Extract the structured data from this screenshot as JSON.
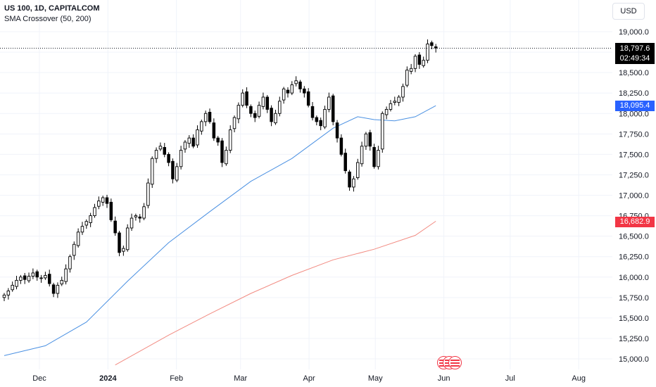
{
  "header": {
    "title": "US 100, 1D, CAPITALCOM",
    "indicator": "SMA Crossover (50, 200)"
  },
  "currency_button": "USD",
  "price_tags": {
    "last_price": "18,797.6",
    "countdown": "02:49:34",
    "sma50": "18,095.4",
    "sma200": "16,682.9"
  },
  "colors": {
    "candles": "#000000",
    "sma50": "#4a90e2",
    "sma200": "#f28b82",
    "sma50_tag": "#2962ff",
    "sma200_tag": "#f23645",
    "grid": "#f0f3fa"
  },
  "icons": [
    "us-flag-event-icon"
  ],
  "chart_data": {
    "type": "candlestick",
    "symbol": "US 100",
    "interval": "1D",
    "source": "CAPITALCOM",
    "y_ticks": [
      15000,
      15250,
      15500,
      15750,
      16000,
      16250,
      16500,
      16750,
      17000,
      17250,
      17500,
      17750,
      18000,
      18250,
      18500,
      18750,
      19000
    ],
    "y_tick_labels": [
      "15,000.0",
      "15,250.0",
      "15,500.0",
      "15,750.0",
      "16,000.0",
      "16,250.0",
      "16,500.0",
      "16,750.0",
      "17,000.0",
      "17,250.0",
      "17,500.0",
      "17,750.0",
      "18,000.0",
      "18,250.0",
      "18,500.0",
      "18,750.0",
      "19,000.0"
    ],
    "ylim": [
      14900,
      19200
    ],
    "x_ticks": [
      {
        "label": "Dec",
        "date": "2023-12-01"
      },
      {
        "label": "2024",
        "date": "2024-01-01",
        "bold": true
      },
      {
        "label": "Feb",
        "date": "2024-02-01"
      },
      {
        "label": "Mar",
        "date": "2024-03-01"
      },
      {
        "label": "Apr",
        "date": "2024-04-01"
      },
      {
        "label": "May",
        "date": "2024-05-01"
      },
      {
        "label": "Jun",
        "date": "2024-06-01"
      },
      {
        "label": "Jul",
        "date": "2024-07-01"
      },
      {
        "label": "Aug",
        "date": "2024-08-01"
      }
    ],
    "last_price": 18797.6,
    "closes": [
      15780,
      15830,
      15900,
      15960,
      16000,
      15970,
      16010,
      16050,
      16000,
      15990,
      16020,
      15920,
      15800,
      15900,
      15960,
      16100,
      16250,
      16400,
      16550,
      16620,
      16680,
      16750,
      16850,
      16930,
      16970,
      16900,
      16700,
      16540,
      16300,
      16350,
      16600,
      16720,
      16750,
      16720,
      16860,
      17150,
      17450,
      17550,
      17600,
      17500,
      17400,
      17200,
      17350,
      17550,
      17650,
      17700,
      17600,
      17800,
      17900,
      18000,
      17900,
      17700,
      17650,
      17400,
      17550,
      17800,
      17950,
      18100,
      18250,
      18100,
      18000,
      17950,
      18100,
      18200,
      18050,
      17900,
      18000,
      18150,
      18300,
      18250,
      18350,
      18400,
      18300,
      18250,
      18100,
      17950,
      17900,
      17850,
      18050,
      18200,
      17900,
      17700,
      17500,
      17300,
      17100,
      17200,
      17400,
      17600,
      17750,
      17600,
      17350,
      17550,
      18000,
      18050,
      18120,
      18150,
      18200,
      18330,
      18530,
      18550,
      18700,
      18600,
      18650,
      18850,
      18830,
      18800
    ],
    "series": [
      {
        "name": "SMA Crossover (50)",
        "color": "#4a90e2",
        "x": [
          0,
          10,
          20,
          30,
          40,
          50,
          60,
          70,
          80,
          86,
          90,
          95,
          100,
          105
        ],
        "values": [
          15040,
          15160,
          15450,
          15950,
          16420,
          16800,
          17170,
          17450,
          17820,
          17960,
          17925,
          17910,
          17960,
          18095
        ]
      },
      {
        "name": "SMA Crossover (200)",
        "color": "#f28b82",
        "x": [
          27,
          40,
          50,
          60,
          70,
          80,
          90,
          100,
          105
        ],
        "values": [
          14925,
          15290,
          15550,
          15800,
          16020,
          16210,
          16340,
          16510,
          16683
        ]
      }
    ]
  }
}
